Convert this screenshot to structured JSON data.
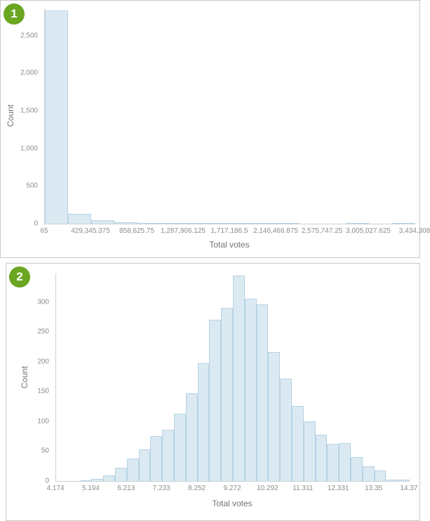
{
  "style": {
    "badge_bg": "#6aa621",
    "badge_fg": "#ffffff",
    "bar_fill": "#dbe9f2",
    "bar_border": "#b7d3e4",
    "axis_line": "#d0d0d0",
    "tick_text": "#8c8c8c",
    "title_text": "#757575",
    "panel_border": "#c9c9c9"
  },
  "charts": [
    {
      "badge": "1",
      "chart_data": {
        "type": "bar",
        "title": "",
        "xlabel": "Total votes",
        "ylabel": "Count",
        "ylim": [
          0,
          2870
        ],
        "x_range": [
          65,
          3434308
        ],
        "grid": false,
        "legend": false,
        "yticks": [
          {
            "value": 0,
            "label": "0"
          },
          {
            "value": 500,
            "label": "500"
          },
          {
            "value": 1000,
            "label": "1,000"
          },
          {
            "value": 1500,
            "label": "1,500"
          },
          {
            "value": 2000,
            "label": "2,000"
          },
          {
            "value": 2500,
            "label": "2,500"
          }
        ],
        "xticks": [
          "65",
          "429,345.375",
          "858,625.75",
          "1,287,906.125",
          "1,717,186.5",
          "2,146,466.875",
          "2,575,747.25",
          "3,005,027.625",
          "3,434,308"
        ],
        "values": [
          2832,
          131,
          44,
          19,
          9,
          5,
          3,
          2,
          1,
          1,
          1,
          0,
          0,
          1,
          0,
          1
        ]
      }
    },
    {
      "badge": "2",
      "chart_data": {
        "type": "bar",
        "title": "",
        "xlabel": "Total votes",
        "ylabel": "Count",
        "ylim": [
          0,
          348
        ],
        "x_range": [
          4.174,
          14.37
        ],
        "grid": false,
        "legend": false,
        "yticks": [
          {
            "value": 0,
            "label": "0"
          },
          {
            "value": 50,
            "label": "50"
          },
          {
            "value": 100,
            "label": "100"
          },
          {
            "value": 150,
            "label": "150"
          },
          {
            "value": 200,
            "label": "200"
          },
          {
            "value": 250,
            "label": "250"
          },
          {
            "value": 300,
            "label": "300"
          }
        ],
        "xticks": [
          "4.174",
          "5.194",
          "6.213",
          "7.233",
          "8.252",
          "9.272",
          "10.292",
          "11.311",
          "12.331",
          "13.35",
          "14.37"
        ],
        "values": [
          0,
          0,
          1,
          3,
          9,
          22,
          38,
          53,
          75,
          86,
          113,
          147,
          197,
          270,
          290,
          345,
          306,
          296,
          216,
          172,
          126,
          100,
          78,
          62,
          64,
          40,
          25,
          18,
          2,
          2
        ]
      }
    }
  ]
}
